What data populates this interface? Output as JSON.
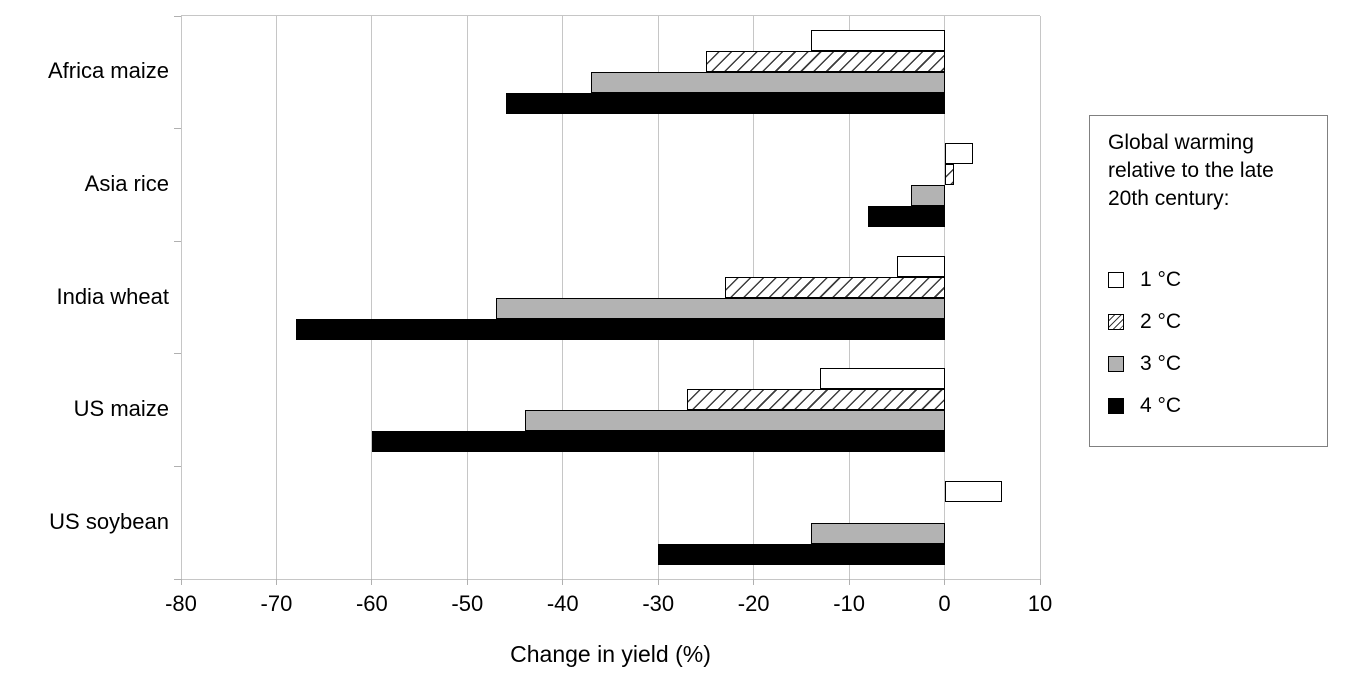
{
  "chart_data": {
    "type": "bar",
    "orientation": "horizontal",
    "title": "",
    "xlabel": "Change in yield (%)",
    "ylabel": "",
    "xlim": [
      -80,
      10
    ],
    "xticks": [
      -80,
      -70,
      -60,
      -50,
      -40,
      -30,
      -20,
      -10,
      0,
      10
    ],
    "grid": true,
    "categories": [
      "Africa maize",
      "Asia rice",
      "India wheat",
      "US maize",
      "US soybean"
    ],
    "series": [
      {
        "name": "1 °C",
        "style": "solid-white",
        "values": [
          -14,
          3,
          -5,
          -13,
          6
        ]
      },
      {
        "name": "2 °C",
        "style": "hatched",
        "values": [
          -25,
          1,
          -23,
          -27,
          0
        ]
      },
      {
        "name": "3 °C",
        "style": "solid-gray",
        "values": [
          -37,
          -3.5,
          -47,
          -44,
          -14
        ]
      },
      {
        "name": "4 °C",
        "style": "solid-black",
        "values": [
          -46,
          -8,
          -68,
          -60,
          -30
        ]
      }
    ],
    "legend": {
      "position": "right",
      "title": "Global warming relative to the late 20th century:",
      "entries": [
        "1 °C",
        "2 °C",
        "3 °C",
        "4 °C"
      ]
    }
  },
  "colors": {
    "background": "#ffffff",
    "text": "#000000",
    "gridline": "#c6c6c6",
    "bar_outline": "#000000",
    "bar_1c_fill": "#ffffff",
    "bar_2c_hatch": "#3d3d3d",
    "bar_3c_fill": "#b3b3b3",
    "bar_4c_fill": "#000000",
    "legend_border": "#808080"
  }
}
